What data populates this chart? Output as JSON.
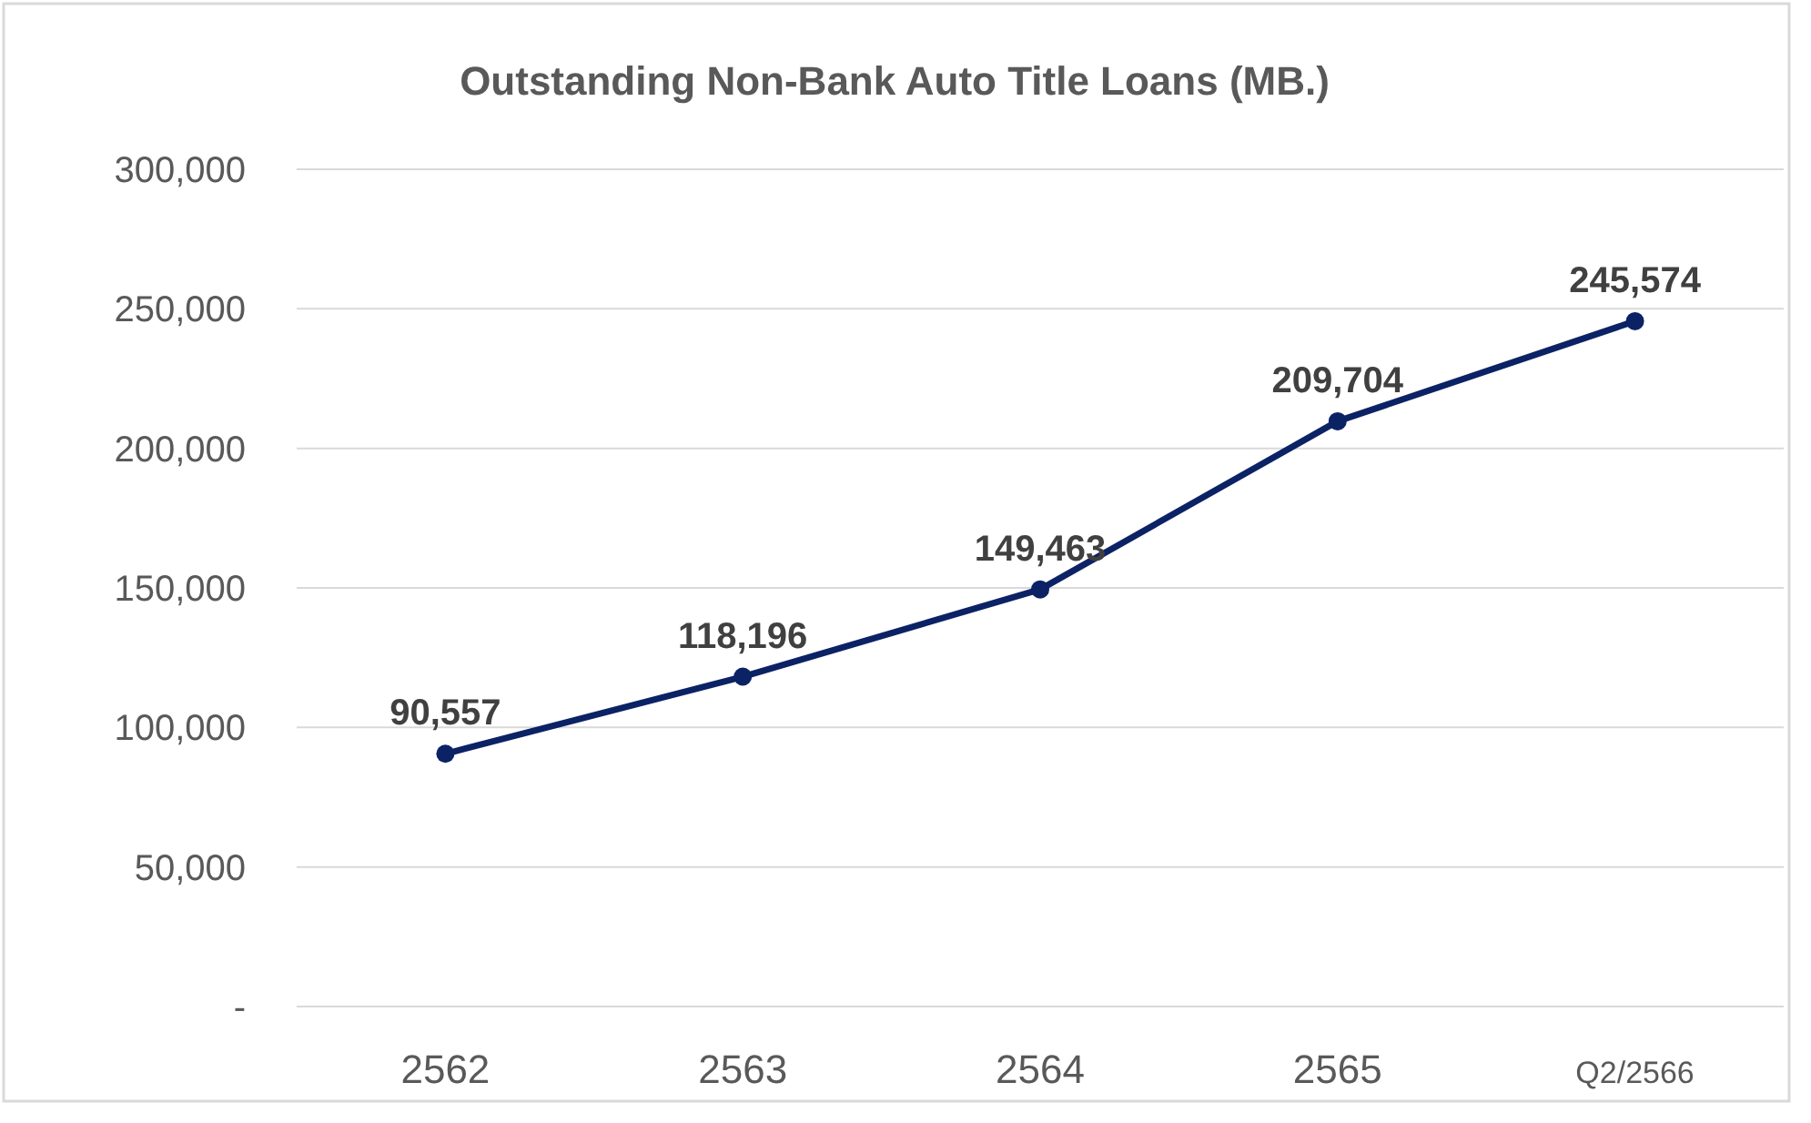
{
  "chart_data": {
    "type": "line",
    "title": "Outstanding Non-Bank Auto Title Loans (MB.)",
    "categories": [
      "2562",
      "2563",
      "2564",
      "2565",
      "Q2/2566"
    ],
    "series": [
      {
        "color": "#0b2265",
        "values": [
          90557,
          118196,
          149463,
          209704,
          245574
        ],
        "value_labels": [
          "90,557",
          "118,196",
          "149,463",
          "209,704",
          "245,574"
        ]
      }
    ],
    "ylim": [
      0,
      300000
    ],
    "yticks": [
      {
        "value": 0,
        "label": "-"
      },
      {
        "value": 50000,
        "label": "50,000"
      },
      {
        "value": 100000,
        "label": "100,000"
      },
      {
        "value": 150000,
        "label": "150,000"
      },
      {
        "value": 200000,
        "label": "200,000"
      },
      {
        "value": 250000,
        "label": "250,000"
      },
      {
        "value": 300000,
        "label": "300,000"
      }
    ],
    "grid": "y",
    "marker": "circle",
    "line_style": "solid"
  }
}
